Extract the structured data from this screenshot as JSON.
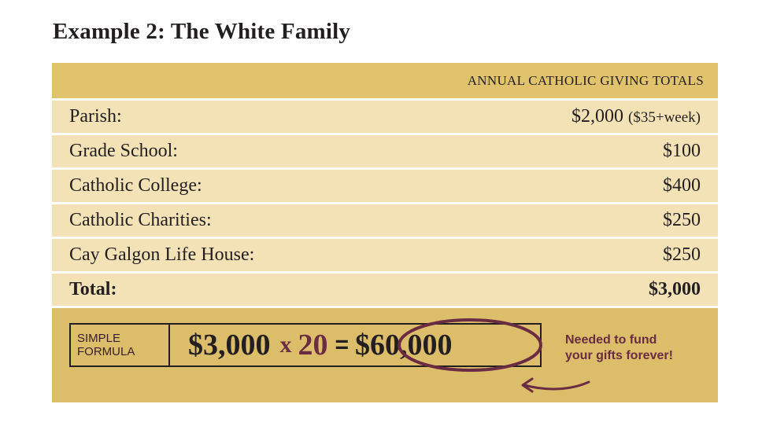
{
  "title": "Example 2: The White Family",
  "table": {
    "header": "ANNUAL CATHOLIC GIVING TOTALS",
    "rows": [
      {
        "label": "Parish:",
        "amount": "$2,000",
        "note": "($35+week)"
      },
      {
        "label": "Grade School:",
        "amount": "$100",
        "note": ""
      },
      {
        "label": "Catholic College:",
        "amount": "$400",
        "note": ""
      },
      {
        "label": "Catholic Charities:",
        "amount": "$250",
        "note": ""
      },
      {
        "label": "Cay Galgon Life House:",
        "amount": "$250",
        "note": ""
      }
    ],
    "total": {
      "label": "Total:",
      "amount": "$3,000"
    }
  },
  "formula": {
    "label_line1": "SIMPLE",
    "label_line2": "FORMULA",
    "base": "$3,000",
    "operator": "x",
    "multiplier": "20",
    "equals": "=",
    "result": "$60,000",
    "note_line1": "Needed to fund",
    "note_line2": "your gifts forever!"
  },
  "colors": {
    "header_bg": "#e1c36e",
    "row_bg": "#f2e2b6",
    "formula_bg": "#dcbd6a",
    "accent": "#6a2c43"
  }
}
